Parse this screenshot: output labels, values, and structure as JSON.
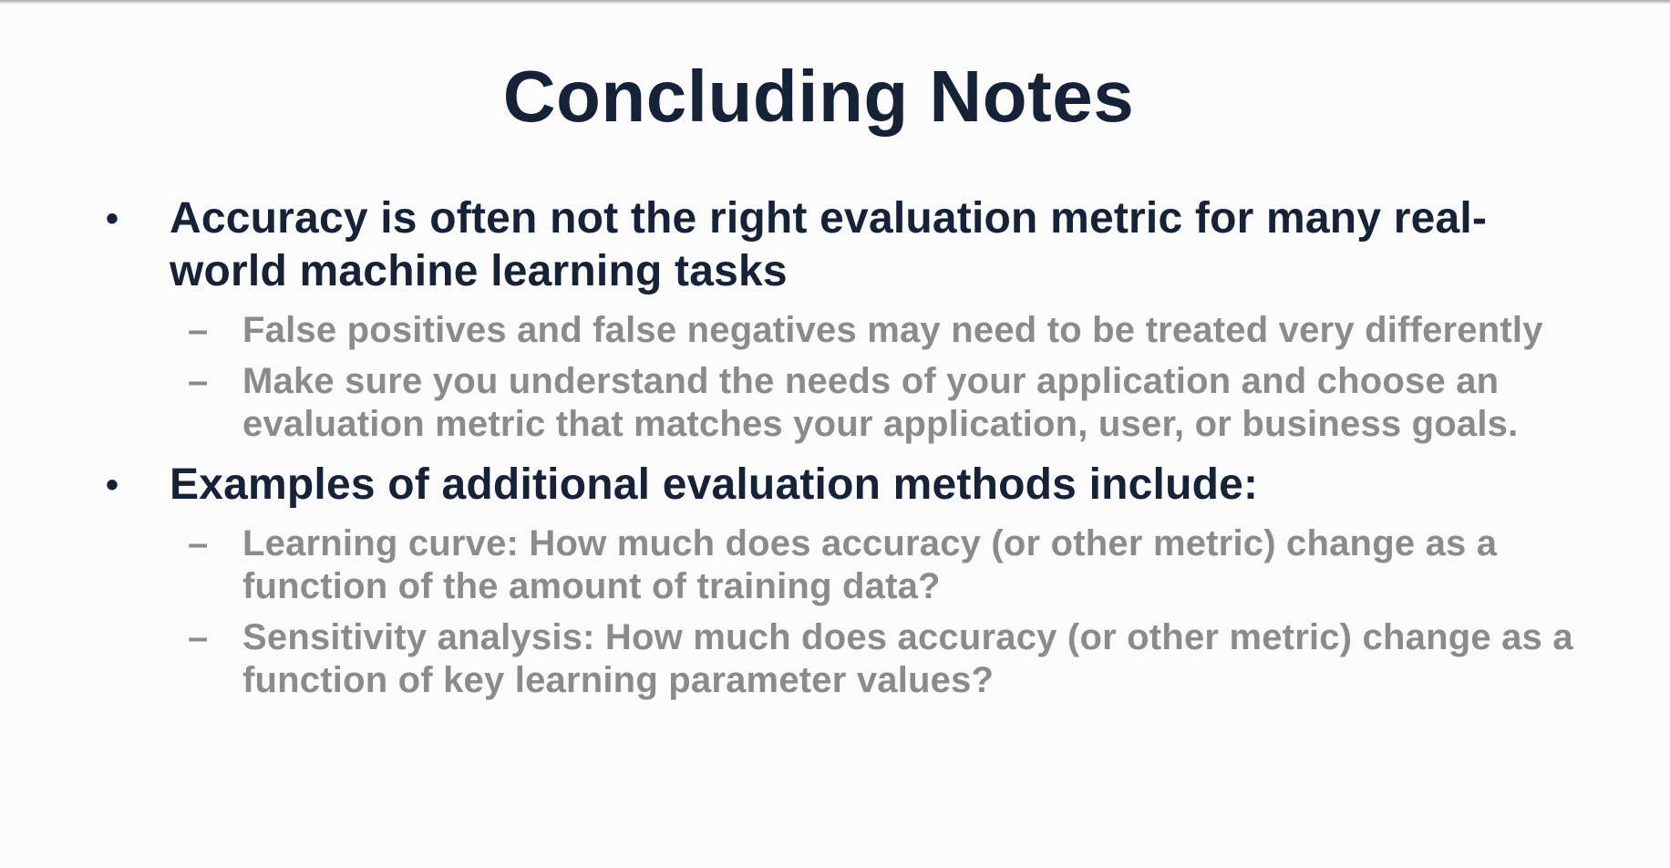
{
  "slide": {
    "title": "Concluding Notes",
    "bullets": [
      {
        "text": "Accuracy is often not the right evaluation metric for many real-world machine learning tasks",
        "subitems": [
          "False positives and false negatives may need to be treated very differently",
          "Make sure you understand the needs of your application and choose an evaluation metric that matches your application, user, or business goals."
        ]
      },
      {
        "text": "Examples of additional evaluation methods include:",
        "subitems": [
          "Learning curve: How much does accuracy (or other metric) change as a function of the amount of training data?",
          "Sensitivity analysis:  How much does accuracy (or other metric) change as a function of key learning parameter values?"
        ]
      }
    ],
    "bullet_glyph": "•",
    "dash_glyph": "–"
  },
  "colors": {
    "title": "#152237",
    "primary_text": "#152237",
    "secondary_text": "#8b8b8b",
    "background": "#fbfbfb"
  }
}
